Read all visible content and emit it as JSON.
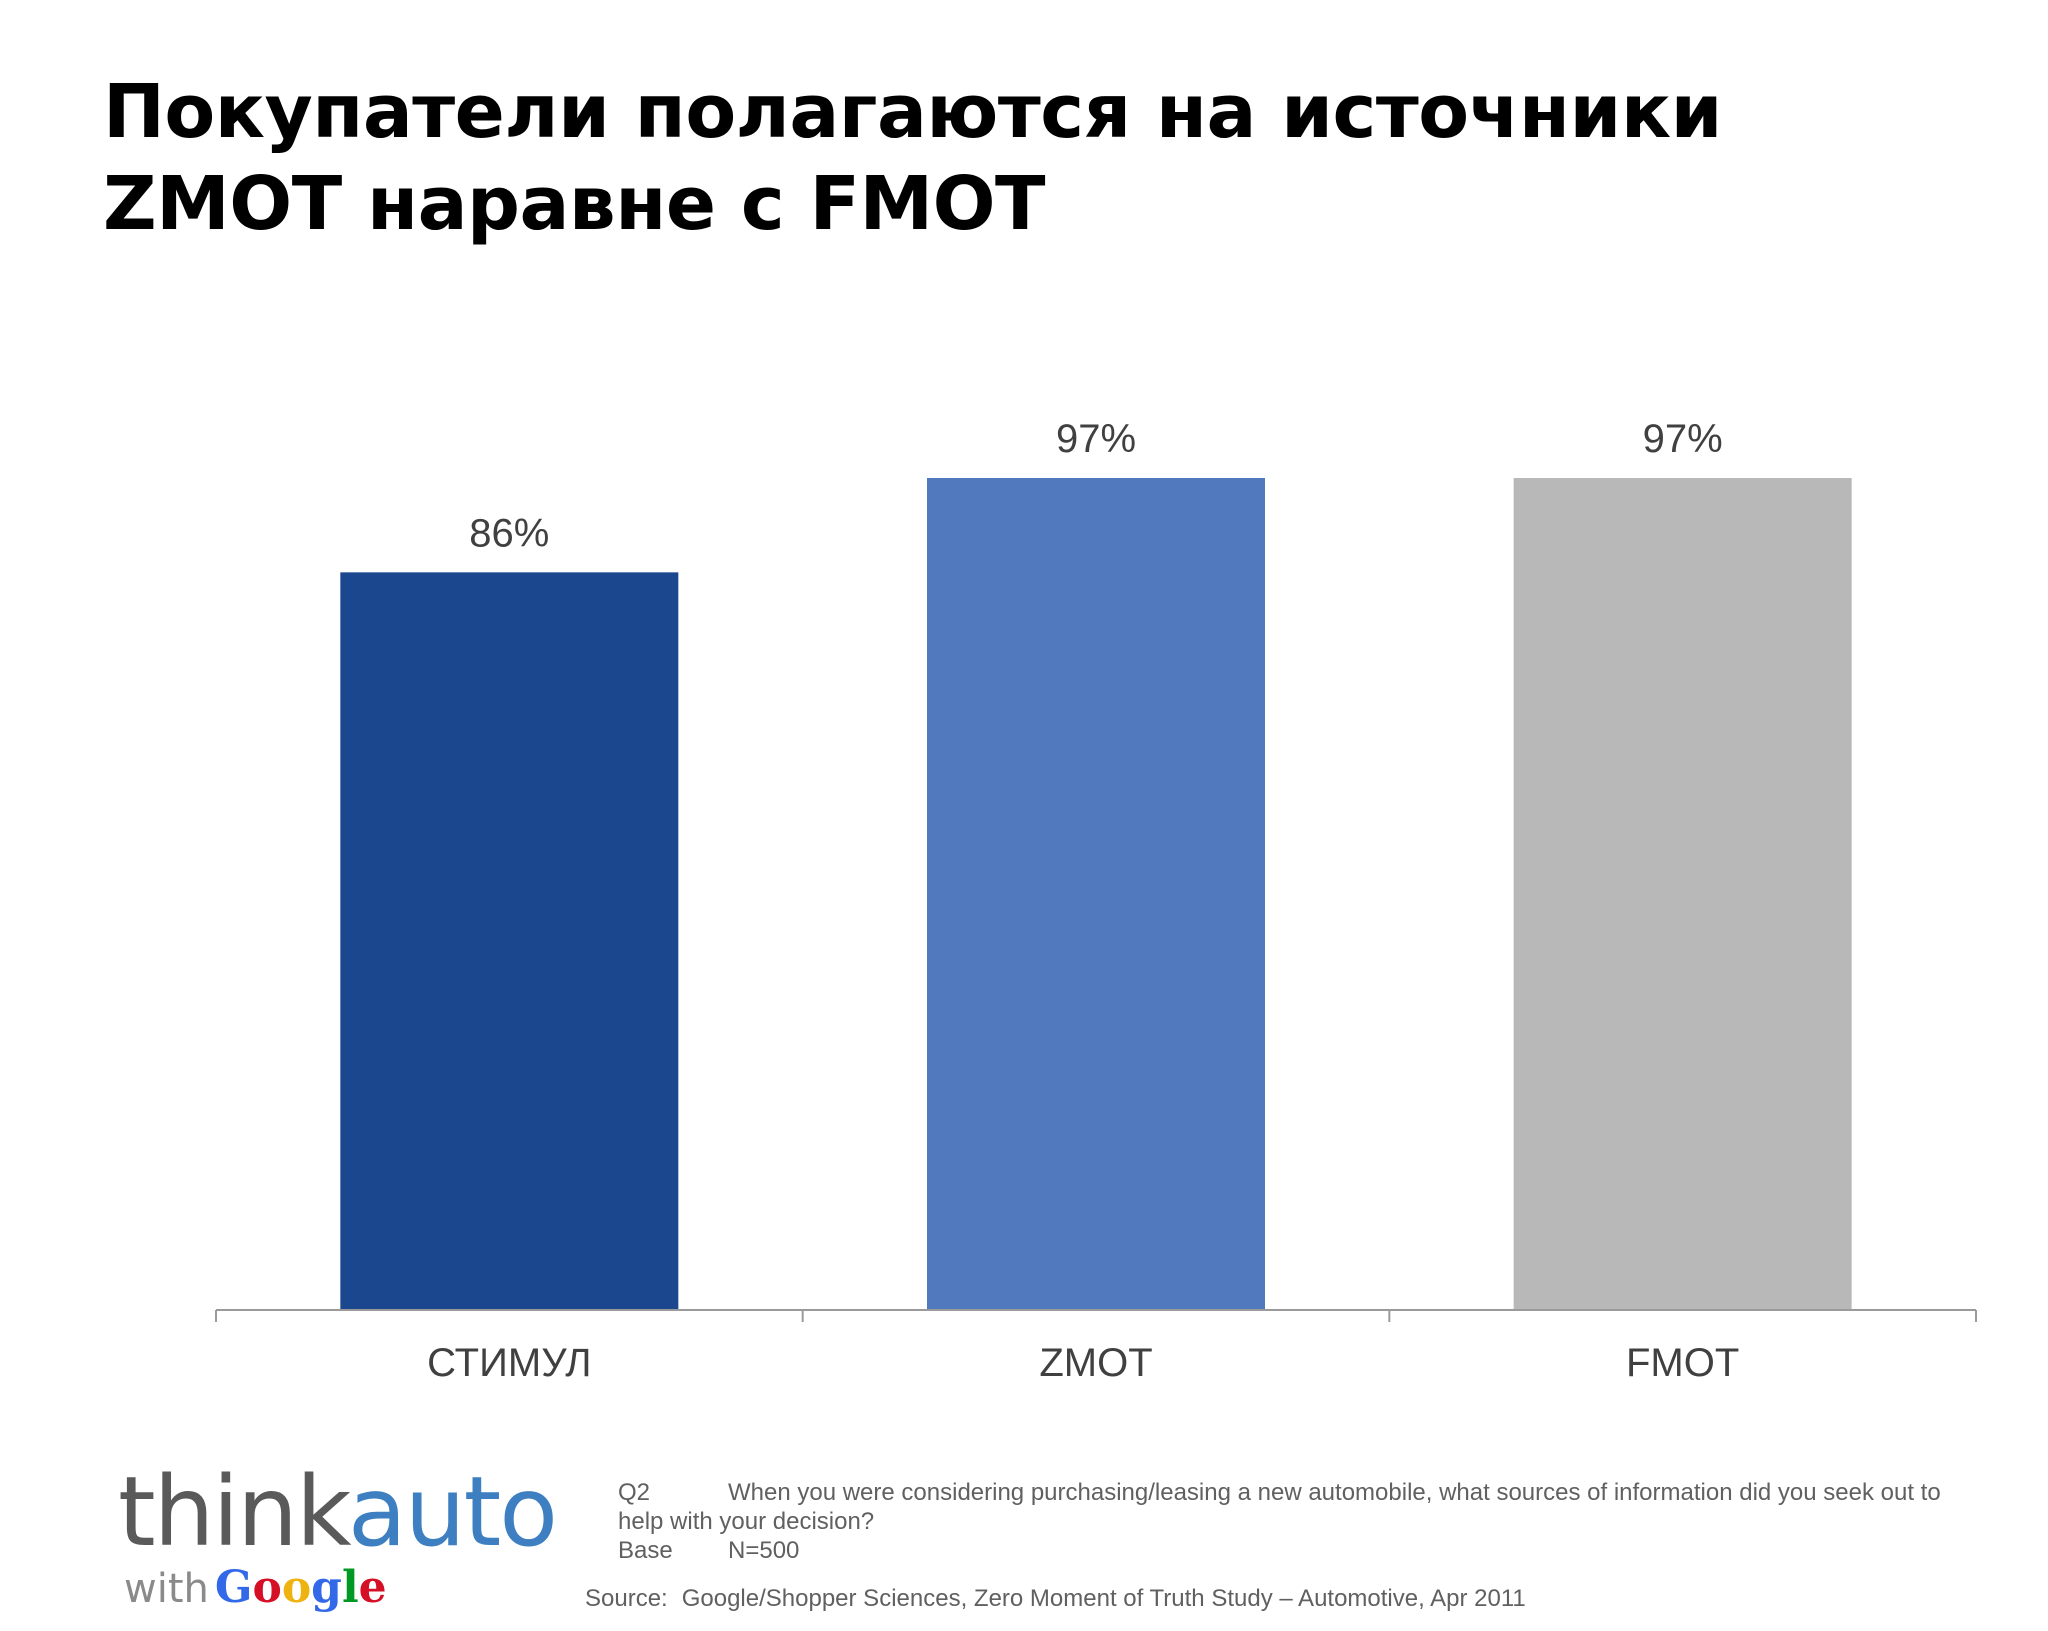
{
  "title": {
    "line1": "Покупатели полагаются на источники",
    "line2": "ZMOT наравне с FMOT"
  },
  "chart_data": {
    "type": "bar",
    "categories": [
      "СТИМУЛ",
      "ZMOT",
      "FMOT"
    ],
    "values": [
      86,
      97,
      97
    ],
    "value_labels": [
      "86%",
      "97%",
      "97%"
    ],
    "colors": [
      "#1b478e",
      "#5179bd",
      "#b8b8b8"
    ],
    "ylim": [
      0,
      97
    ],
    "grid": false,
    "legend": "none"
  },
  "logo": {
    "think": "think",
    "auto": "auto",
    "with": "with",
    "google_letters": [
      "G",
      "o",
      "o",
      "g",
      "l",
      "e"
    ]
  },
  "footnote": {
    "question_key": "Q2",
    "question_text": "When you were considering purchasing/leasing a new automobile, what sources of information did you seek out to help with your decision?",
    "base_key": "Base",
    "base_value": "N=500",
    "source_key": "Source:",
    "source_value": "Google/Shopper Sciences, Zero Moment of Truth Study – Automotive, Apr 2011"
  }
}
